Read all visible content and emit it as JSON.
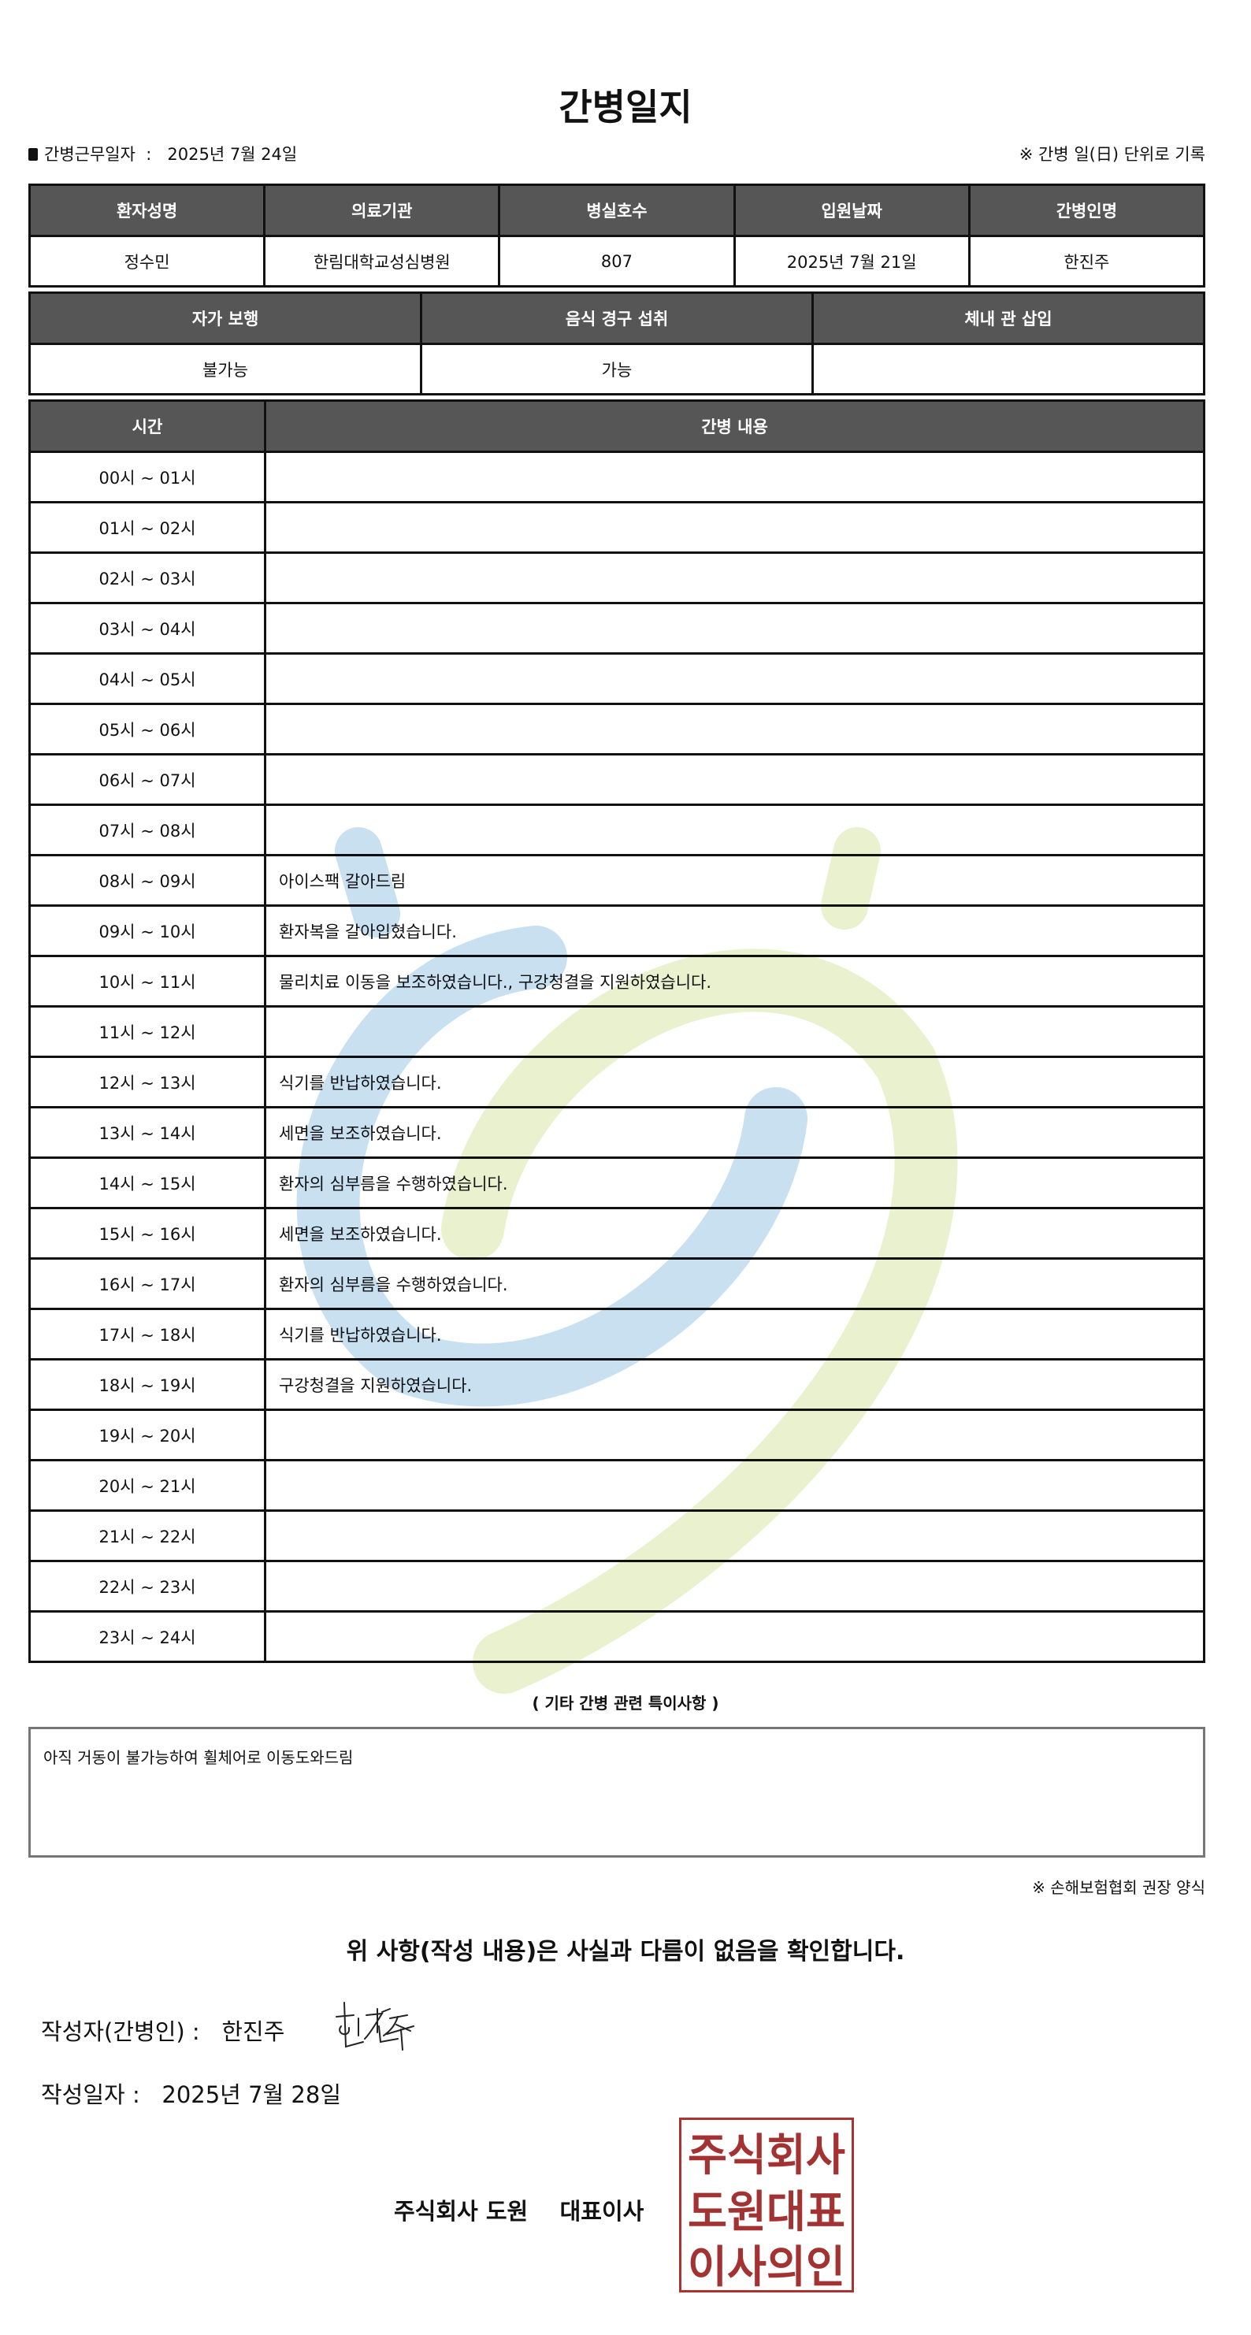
{
  "title": "간병일지",
  "work_date_label": "간병근무일자",
  "work_date": "2025년 7월 24일",
  "record_note": "※ 간병 일(日) 단위로 기록",
  "patient_table": {
    "headers": [
      "환자성명",
      "의료기관",
      "병실호수",
      "입원날짜",
      "간병인명"
    ],
    "values": [
      "정수민",
      "한림대학교성심병원",
      "807",
      "2025년 7월 21일",
      "한진주"
    ]
  },
  "status_table": {
    "headers": [
      "자가 보행",
      "음식 경구 섭취",
      "체내 관 삽입"
    ],
    "values": [
      "불가능",
      "가능",
      ""
    ]
  },
  "log_table": {
    "headers": [
      "시간",
      "간병 내용"
    ],
    "rows": [
      {
        "time": "00시 ~ 01시",
        "content": ""
      },
      {
        "time": "01시 ~ 02시",
        "content": ""
      },
      {
        "time": "02시 ~ 03시",
        "content": ""
      },
      {
        "time": "03시 ~ 04시",
        "content": ""
      },
      {
        "time": "04시 ~ 05시",
        "content": ""
      },
      {
        "time": "05시 ~ 06시",
        "content": ""
      },
      {
        "time": "06시 ~ 07시",
        "content": ""
      },
      {
        "time": "07시 ~ 08시",
        "content": ""
      },
      {
        "time": "08시 ~ 09시",
        "content": "아이스팩 갈아드림"
      },
      {
        "time": "09시 ~ 10시",
        "content": "환자복을 갈아입혔습니다."
      },
      {
        "time": "10시 ~ 11시",
        "content": "물리치료 이동을 보조하였습니다., 구강청결을 지원하였습니다."
      },
      {
        "time": "11시 ~ 12시",
        "content": ""
      },
      {
        "time": "12시 ~ 13시",
        "content": "식기를 반납하였습니다."
      },
      {
        "time": "13시 ~ 14시",
        "content": "세면을 보조하였습니다."
      },
      {
        "time": "14시 ~ 15시",
        "content": "환자의 심부름을 수행하였습니다."
      },
      {
        "time": "15시 ~ 16시",
        "content": "세면을 보조하였습니다."
      },
      {
        "time": "16시 ~ 17시",
        "content": "환자의 심부름을 수행하였습니다."
      },
      {
        "time": "17시 ~ 18시",
        "content": "식기를 반납하였습니다."
      },
      {
        "time": "18시 ~ 19시",
        "content": "구강청결을 지원하였습니다."
      },
      {
        "time": "19시 ~ 20시",
        "content": ""
      },
      {
        "time": "20시 ~ 21시",
        "content": ""
      },
      {
        "time": "21시 ~ 22시",
        "content": ""
      },
      {
        "time": "22시 ~ 23시",
        "content": ""
      },
      {
        "time": "23시 ~ 24시",
        "content": ""
      }
    ]
  },
  "special_notes_label": "( 기타 간병 관련 특이사항 )",
  "special_notes": "아직 거동이 불가능하여 휠체어로 이동도와드림",
  "form_source": "※ 손해보험협회 권장 양식",
  "confirmation": "위 사항(작성 내용)은 사실과 다름이 없음을 확인합니다.",
  "writer_label": "작성자(간병인) :",
  "writer_name": "한진주",
  "signature": "한진주",
  "written_date_label": "작성일자 :",
  "written_date": "2025년 7월 28일",
  "company": "주식회사 도원",
  "representative": "대표이사",
  "stamp_text": "주식회사도원대표이사의인",
  "colors": {
    "header_bg": "#565656",
    "stamp": "#a33333",
    "watermark_blue": "#c9e0f1",
    "watermark_green": "#eaf1cf"
  }
}
